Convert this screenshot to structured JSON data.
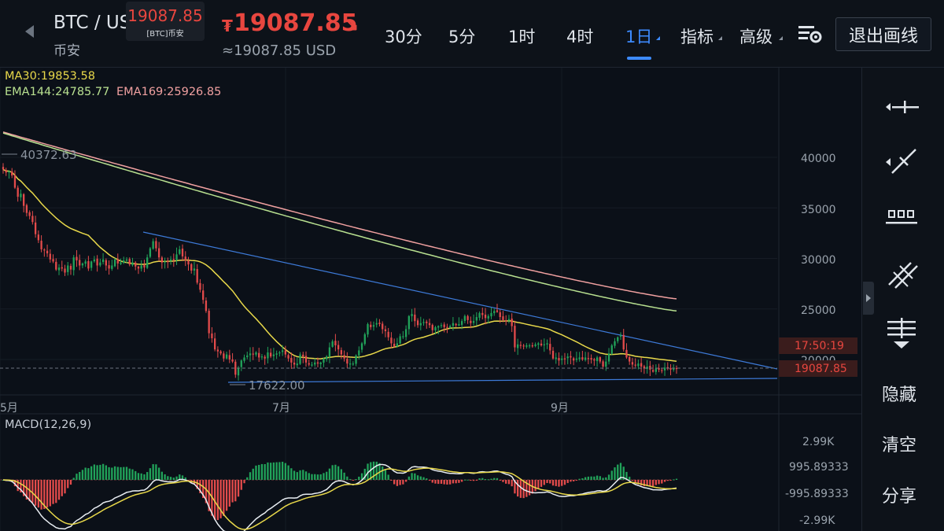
{
  "header": {
    "pair": "BTC / USD",
    "exchange": "币安",
    "tooltip_price": "19087.85",
    "tooltip_sub": "[BTC]币安",
    "currency_symbol": "₮",
    "last_price": "19087.85",
    "usd_price": "≈19087.85 USD",
    "timeframes": [
      "30分",
      "5分",
      "1时",
      "4时",
      "1日"
    ],
    "active_timeframe": "1日",
    "menus": [
      "指标",
      "高级"
    ],
    "exit_drawing_label": "退出画线",
    "icons": {
      "back": "back-arrow-icon",
      "trend": "down-arrow-icon",
      "settings": "chart-settings-icon"
    },
    "colors": {
      "down": "#e8463f",
      "active": "#3d8bff"
    }
  },
  "indicators": {
    "ma30": "MA30:19853.58",
    "ema144": "EMA144:24785.77",
    "ema169": "EMA169:25926.85",
    "macd": "MACD(12,26,9)",
    "colors": {
      "ma30": "#e8d84a",
      "ema144": "#b8e090",
      "ema169": "#f0a0a0",
      "macd_line": "#e8edf2",
      "signal_line": "#e8d84a",
      "up": "#21a35a",
      "down": "#e34b4b"
    }
  },
  "price_axis": {
    "ticks": [
      "40000",
      "35000",
      "30000",
      "25000",
      "20000"
    ],
    "countdown": "17:50:19",
    "current_price": "19087.85"
  },
  "macd_axis": {
    "ticks": [
      "2.99K",
      "995.89333",
      "-995.89333",
      "-2.99K"
    ]
  },
  "time_axis": {
    "labels": [
      "5月",
      "7月",
      "9月"
    ]
  },
  "annotations": {
    "high": "40372.63",
    "low": "17622.00"
  },
  "chart_data": {
    "type": "candlestick",
    "timeframe": "1日",
    "x_labels": [
      "5月",
      "7月",
      "9月"
    ],
    "price_axis_ticks": [
      40000,
      35000,
      30000,
      25000,
      20000
    ],
    "last_close": 19087.85,
    "annotated_high": 40372.63,
    "annotated_low": 17622.0,
    "close_approx": [
      38800,
      38500,
      38600,
      38200,
      37000,
      36100,
      36400,
      35200,
      34500,
      34200,
      33600,
      32400,
      31800,
      30900,
      30800,
      30500,
      29900,
      29700,
      28900,
      29100,
      29000,
      28600,
      29300,
      28900,
      30100,
      29800,
      29300,
      29500,
      29700,
      29000,
      29700,
      29900,
      29300,
      29600,
      29900,
      29300,
      29000,
      29300,
      29900,
      29500,
      29600,
      29800,
      29900,
      29400,
      29600,
      29200,
      29000,
      29300,
      29100,
      30100,
      31000,
      31700,
      31000,
      30100,
      29600,
      29700,
      29700,
      29900,
      29800,
      30400,
      30900,
      30200,
      29800,
      29400,
      28800,
      29000,
      27600,
      26900,
      25900,
      24800,
      22600,
      22100,
      21000,
      20800,
      20600,
      20100,
      20500,
      20000,
      19800,
      18500,
      19200,
      19900,
      20200,
      20400,
      20600,
      20500,
      20700,
      20200,
      20300,
      20100,
      20700,
      20300,
      20500,
      20600,
      20700,
      20900,
      20500,
      20100,
      19700,
      19500,
      19600,
      20500,
      20300,
      19700,
      19500,
      19500,
      19700,
      19600,
      19700,
      20100,
      20300,
      21200,
      21800,
      21400,
      21000,
      20500,
      20100,
      19600,
      19600,
      19600,
      20400,
      20900,
      21600,
      22500,
      23500,
      23200,
      23400,
      23600,
      23500,
      23000,
      22800,
      22200,
      21600,
      21300,
      21600,
      22300,
      22300,
      23000,
      24300,
      24500,
      23800,
      23400,
      23600,
      23700,
      23600,
      23400,
      22900,
      23200,
      23300,
      23400,
      23200,
      23200,
      23300,
      23600,
      23400,
      23500,
      23800,
      24300,
      23900,
      23600,
      23800,
      24200,
      24600,
      24400,
      24100,
      24300,
      24600,
      24800,
      24700,
      24200,
      23900,
      23800,
      24000,
      23300,
      21200,
      21500,
      21400,
      21300,
      21400,
      21400,
      21300,
      21500,
      21600,
      21400,
      21500,
      21600,
      20900,
      20100,
      20200,
      19900,
      20100,
      20100,
      20300,
      20200,
      19900,
      20100,
      20200,
      20000,
      20200,
      20100,
      20000,
      19900,
      20200,
      19800,
      19300,
      19800,
      20600,
      21400,
      21800,
      22200,
      22400,
      21000,
      20200,
      19800,
      19500,
      19400,
      19600,
      19300,
      19100,
      19300,
      19000,
      18800,
      19100,
      19000,
      18900,
      19200,
      19100,
      19000,
      19100,
      19087.85
    ]
  }
}
